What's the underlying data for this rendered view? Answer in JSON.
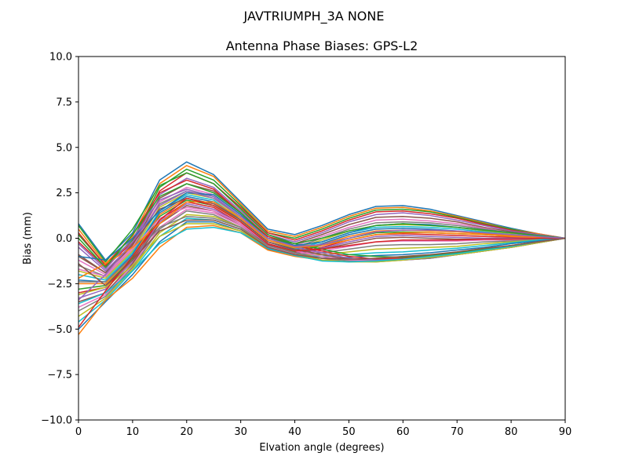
{
  "chart_data": {
    "type": "line",
    "suptitle": "JAVTRIUMPH_3A   NONE",
    "title": "Antenna Phase Biases: GPS-L2",
    "xlabel": "Elvation angle (degrees)",
    "ylabel": "Bias (mm)",
    "xlim": [
      0,
      90
    ],
    "ylim": [
      -10,
      10
    ],
    "xticks": [
      0,
      10,
      20,
      30,
      40,
      50,
      60,
      70,
      80,
      90
    ],
    "xtick_labels": [
      "0",
      "10",
      "20",
      "30",
      "40",
      "50",
      "60",
      "70",
      "80",
      "90"
    ],
    "yticks": [
      -10,
      -7.5,
      -5,
      -2.5,
      0,
      2.5,
      5,
      7.5,
      10
    ],
    "ytick_labels": [
      "−10.0",
      "−7.5",
      "−5.0",
      "−2.5",
      "0.0",
      "2.5",
      "5.0",
      "7.5",
      "10.0"
    ],
    "grid": false,
    "legend": "none",
    "colors": [
      "#1f77b4",
      "#ff7f0e",
      "#2ca02c",
      "#d62728",
      "#9467bd",
      "#8c564b",
      "#e377c2",
      "#7f7f7f",
      "#bcbd22",
      "#17becf"
    ],
    "x": [
      0,
      5,
      10,
      15,
      20,
      25,
      30,
      35,
      40,
      45,
      50,
      55,
      60,
      65,
      70,
      75,
      80,
      85,
      90
    ],
    "series": [
      {
        "values": [
          0.8,
          -1.2,
          0.3,
          3.2,
          4.2,
          3.5,
          2.0,
          0.5,
          0.2,
          0.7,
          1.3,
          1.75,
          1.8,
          1.6,
          1.25,
          0.9,
          0.55,
          0.25,
          0.0
        ]
      },
      {
        "values": [
          0.5,
          -1.4,
          0.1,
          3.0,
          4.0,
          3.4,
          1.9,
          0.4,
          0.1,
          0.6,
          1.2,
          1.65,
          1.7,
          1.5,
          1.2,
          0.85,
          0.5,
          0.25,
          0.0
        ]
      },
      {
        "values": [
          0.2,
          -1.5,
          -0.1,
          2.8,
          3.8,
          3.2,
          1.8,
          0.3,
          0.0,
          0.5,
          1.1,
          1.55,
          1.6,
          1.45,
          1.15,
          0.8,
          0.5,
          0.2,
          0.0
        ]
      },
      {
        "values": [
          -0.2,
          -1.6,
          -0.2,
          2.6,
          3.6,
          3.0,
          1.7,
          0.3,
          -0.1,
          0.4,
          1.0,
          1.45,
          1.5,
          1.35,
          1.1,
          0.75,
          0.45,
          0.2,
          0.0
        ]
      },
      {
        "values": [
          -0.5,
          -1.8,
          -0.3,
          2.4,
          3.3,
          2.8,
          1.5,
          0.2,
          -0.2,
          0.3,
          0.9,
          1.3,
          1.4,
          1.25,
          1.0,
          0.7,
          0.4,
          0.2,
          0.0
        ]
      },
      {
        "values": [
          -0.9,
          -1.9,
          -0.4,
          2.2,
          3.0,
          2.6,
          1.4,
          0.1,
          -0.3,
          0.2,
          0.75,
          1.15,
          1.2,
          1.1,
          0.9,
          0.6,
          0.35,
          0.15,
          0.0
        ]
      },
      {
        "values": [
          -1.2,
          -2.0,
          -0.5,
          2.0,
          2.8,
          2.4,
          1.3,
          0.0,
          -0.4,
          0.1,
          0.6,
          1.0,
          1.05,
          0.95,
          0.8,
          0.55,
          0.3,
          0.15,
          0.0
        ]
      },
      {
        "values": [
          -1.5,
          -2.1,
          -0.6,
          1.9,
          2.6,
          2.3,
          1.2,
          0.0,
          -0.5,
          0.0,
          0.5,
          0.85,
          0.9,
          0.85,
          0.7,
          0.5,
          0.3,
          0.1,
          0.0
        ]
      },
      {
        "values": [
          -1.8,
          -2.2,
          -0.7,
          1.7,
          2.5,
          2.2,
          1.1,
          -0.1,
          -0.55,
          -0.1,
          0.4,
          0.7,
          0.75,
          0.7,
          0.6,
          0.4,
          0.25,
          0.1,
          0.0
        ]
      },
      {
        "values": [
          -2.0,
          -2.3,
          -0.8,
          1.5,
          2.4,
          2.1,
          1.0,
          -0.2,
          -0.6,
          -0.2,
          0.3,
          0.6,
          0.65,
          0.6,
          0.5,
          0.35,
          0.2,
          0.1,
          0.0
        ]
      },
      {
        "values": [
          -2.3,
          -2.4,
          -0.9,
          1.4,
          2.3,
          2.0,
          1.0,
          -0.2,
          -0.65,
          -0.3,
          0.2,
          0.5,
          0.55,
          0.5,
          0.4,
          0.3,
          0.2,
          0.1,
          0.0
        ]
      },
      {
        "values": [
          -2.5,
          -2.5,
          -1.0,
          1.3,
          2.2,
          1.9,
          0.9,
          -0.3,
          -0.7,
          -0.35,
          0.1,
          0.4,
          0.45,
          0.4,
          0.35,
          0.25,
          0.15,
          0.05,
          0.0
        ]
      },
      {
        "values": [
          -2.8,
          -2.6,
          -1.1,
          1.2,
          2.1,
          1.8,
          0.9,
          -0.3,
          -0.75,
          -0.4,
          0.0,
          0.3,
          0.35,
          0.3,
          0.25,
          0.2,
          0.1,
          0.05,
          0.0
        ]
      },
      {
        "values": [
          -3.0,
          -2.7,
          -1.2,
          1.0,
          2.0,
          1.7,
          0.8,
          -0.35,
          -0.8,
          -0.5,
          -0.1,
          0.2,
          0.25,
          0.2,
          0.15,
          0.1,
          0.05,
          0.0,
          0.0
        ]
      },
      {
        "values": [
          -3.3,
          -2.8,
          -1.3,
          0.9,
          1.9,
          1.6,
          0.8,
          -0.4,
          -0.82,
          -0.55,
          -0.2,
          0.1,
          0.15,
          0.1,
          0.05,
          0.0,
          0.0,
          0.0,
          0.0
        ]
      },
      {
        "values": [
          -3.5,
          -3.0,
          -1.4,
          0.8,
          1.8,
          1.5,
          0.7,
          -0.4,
          -0.85,
          -0.6,
          -0.3,
          0.0,
          0.05,
          0.0,
          -0.05,
          -0.05,
          -0.05,
          0.0,
          0.0
        ]
      },
      {
        "values": [
          -3.8,
          -3.1,
          -1.5,
          0.6,
          1.6,
          1.4,
          0.7,
          -0.45,
          -0.88,
          -0.7,
          -0.45,
          -0.2,
          -0.15,
          -0.15,
          -0.15,
          -0.1,
          -0.1,
          -0.05,
          0.0
        ]
      },
      {
        "values": [
          -4.0,
          -3.2,
          -1.6,
          0.5,
          1.5,
          1.3,
          0.6,
          -0.5,
          -0.9,
          -0.8,
          -0.6,
          -0.4,
          -0.35,
          -0.35,
          -0.3,
          -0.2,
          -0.15,
          -0.05,
          0.0
        ]
      },
      {
        "values": [
          -4.3,
          -3.3,
          -1.7,
          0.3,
          1.3,
          1.2,
          0.6,
          -0.5,
          -0.92,
          -0.9,
          -0.75,
          -0.6,
          -0.55,
          -0.5,
          -0.45,
          -0.3,
          -0.2,
          -0.1,
          0.0
        ]
      },
      {
        "values": [
          -4.6,
          -3.4,
          -1.8,
          0.1,
          1.1,
          1.0,
          0.5,
          -0.55,
          -0.95,
          -1.0,
          -0.9,
          -0.8,
          -0.75,
          -0.65,
          -0.55,
          -0.4,
          -0.25,
          -0.1,
          0.0
        ]
      },
      {
        "values": [
          -5.0,
          -3.5,
          -2.0,
          -0.2,
          0.9,
          0.9,
          0.4,
          -0.6,
          -0.98,
          -1.1,
          -1.05,
          -0.95,
          -0.9,
          -0.8,
          -0.65,
          -0.5,
          -0.3,
          -0.15,
          0.0
        ]
      },
      {
        "values": [
          -5.3,
          -3.4,
          -2.2,
          -0.5,
          0.6,
          0.7,
          0.3,
          -0.65,
          -1.0,
          -1.2,
          -1.2,
          -1.1,
          -1.05,
          -0.95,
          -0.8,
          -0.6,
          -0.4,
          -0.2,
          0.0
        ]
      },
      {
        "values": [
          0.7,
          -1.3,
          0.5,
          2.9,
          3.6,
          3.0,
          1.6,
          0.2,
          -0.3,
          -0.6,
          -0.9,
          -1.0,
          -1.05,
          -0.95,
          -0.8,
          -0.6,
          -0.4,
          -0.2,
          0.0
        ]
      },
      {
        "values": [
          0.3,
          -1.5,
          0.2,
          2.5,
          3.2,
          2.7,
          1.4,
          0.1,
          -0.4,
          -0.7,
          -1.0,
          -1.15,
          -1.1,
          -1.0,
          -0.85,
          -0.65,
          -0.45,
          -0.2,
          0.0
        ]
      },
      {
        "values": [
          -0.3,
          -1.7,
          0.0,
          2.1,
          2.7,
          2.3,
          1.2,
          -0.1,
          -0.5,
          -0.8,
          -1.1,
          -1.2,
          -1.15,
          -1.05,
          -0.9,
          -0.7,
          -0.45,
          -0.25,
          0.0
        ]
      },
      {
        "values": [
          -1.0,
          -1.9,
          -0.3,
          1.6,
          2.2,
          1.9,
          1.0,
          -0.2,
          -0.6,
          -0.9,
          -1.15,
          -1.25,
          -1.2,
          -1.1,
          -0.9,
          -0.7,
          -0.5,
          -0.25,
          0.0
        ]
      },
      {
        "values": [
          -1.7,
          -2.1,
          -0.6,
          1.1,
          1.7,
          1.5,
          0.8,
          -0.3,
          -0.7,
          -1.0,
          -1.2,
          -1.25,
          -1.2,
          -1.1,
          -0.9,
          -0.7,
          -0.5,
          -0.25,
          0.0
        ]
      },
      {
        "values": [
          -2.4,
          -2.4,
          -1.0,
          0.6,
          1.2,
          1.1,
          0.6,
          -0.4,
          -0.8,
          -1.1,
          -1.25,
          -1.3,
          -1.2,
          -1.1,
          -0.9,
          -0.7,
          -0.5,
          -0.25,
          0.0
        ]
      },
      {
        "values": [
          -3.1,
          -2.7,
          -1.5,
          0.1,
          0.8,
          0.8,
          0.4,
          -0.5,
          -0.9,
          -1.2,
          -1.3,
          -1.3,
          -1.2,
          -1.05,
          -0.9,
          -0.7,
          -0.5,
          -0.25,
          0.0
        ]
      },
      {
        "values": [
          -3.6,
          -3.0,
          -1.8,
          -0.3,
          0.5,
          0.6,
          0.3,
          -0.55,
          -0.95,
          -1.25,
          -1.3,
          -1.25,
          -1.15,
          -1.0,
          -0.85,
          -0.65,
          -0.45,
          -0.2,
          0.0
        ]
      },
      {
        "values": [
          -1.0,
          -1.2,
          0.0,
          1.5,
          2.5,
          2.4,
          1.3,
          0.0,
          -0.4,
          -0.2,
          0.3,
          0.7,
          0.8,
          0.75,
          0.6,
          0.45,
          0.3,
          0.15,
          0.0
        ]
      },
      {
        "values": [
          -2.2,
          -1.4,
          -0.5,
          0.8,
          2.0,
          2.0,
          1.1,
          -0.1,
          -0.5,
          -0.4,
          -0.1,
          0.2,
          0.3,
          0.3,
          0.25,
          0.2,
          0.1,
          0.05,
          0.0
        ]
      },
      {
        "values": [
          0.0,
          -1.6,
          0.2,
          2.3,
          3.0,
          2.5,
          1.4,
          0.0,
          -0.3,
          0.0,
          0.4,
          0.7,
          0.8,
          0.7,
          0.6,
          0.45,
          0.3,
          0.15,
          0.0
        ]
      },
      {
        "values": [
          -4.9,
          -2.9,
          -1.0,
          1.0,
          2.2,
          1.8,
          0.9,
          -0.3,
          -0.7,
          -0.6,
          -0.4,
          -0.2,
          -0.1,
          -0.1,
          -0.1,
          -0.05,
          -0.05,
          0.0,
          0.0
        ]
      },
      {
        "values": [
          -3.4,
          -2.0,
          -0.2,
          1.8,
          2.6,
          2.2,
          1.2,
          0.0,
          -0.45,
          -0.35,
          0.0,
          0.35,
          0.45,
          0.45,
          0.4,
          0.3,
          0.2,
          0.1,
          0.0
        ]
      },
      {
        "values": [
          -1.4,
          -2.6,
          -1.2,
          0.4,
          1.0,
          1.0,
          0.5,
          -0.5,
          -0.9,
          -1.1,
          -1.15,
          -1.1,
          -1.0,
          -0.9,
          -0.75,
          -0.55,
          -0.4,
          -0.2,
          0.0
        ]
      }
    ]
  }
}
